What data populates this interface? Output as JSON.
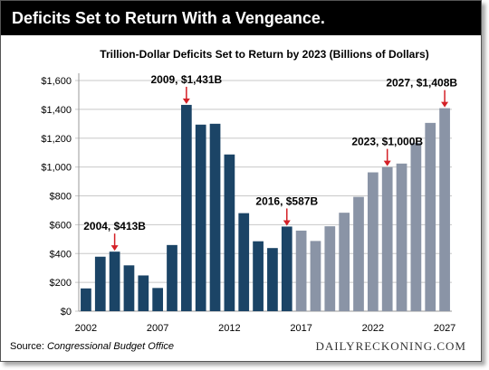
{
  "banner_title": "Deficits Set to Return With a Vengeance.",
  "source_label": "Source:",
  "source_text": "Congressional Budget Office",
  "brand": "DAILYRECKONING.COM",
  "chart_data": {
    "type": "bar",
    "title": "Trillion-Dollar Deficits Set to Return by 2023 (Billions of Dollars)",
    "xlabel": "",
    "ylabel": "",
    "ylim": [
      0,
      1600
    ],
    "y_ticks": [
      0,
      200,
      400,
      600,
      800,
      1000,
      1200,
      1400,
      1600
    ],
    "y_tick_labels": [
      "$0",
      "$200",
      "$400",
      "$600",
      "$800",
      "$1,000",
      "$1,200",
      "$1,400",
      "$1,600"
    ],
    "x_tick_labels": [
      "2002",
      "2007",
      "2012",
      "2017",
      "2022",
      "2027"
    ],
    "grid": true,
    "categories": [
      2002,
      2003,
      2004,
      2005,
      2006,
      2007,
      2008,
      2009,
      2010,
      2011,
      2012,
      2013,
      2014,
      2015,
      2016,
      2017,
      2018,
      2019,
      2020,
      2021,
      2022,
      2023,
      2024,
      2025,
      2026,
      2027
    ],
    "values": [
      158,
      378,
      413,
      318,
      248,
      161,
      459,
      1431,
      1294,
      1300,
      1087,
      680,
      485,
      438,
      587,
      559,
      487,
      589,
      683,
      793,
      963,
      1000,
      1024,
      1168,
      1306,
      1408
    ],
    "projected_from": 2017,
    "colors": {
      "actual": "#1b4466",
      "projected": "#8a94a6",
      "annotation": "#d42027"
    },
    "annotations": [
      {
        "year": 2004,
        "label": "2004, $413B"
      },
      {
        "year": 2009,
        "label": "2009, $1,431B"
      },
      {
        "year": 2016,
        "label": "2016, $587B"
      },
      {
        "year": 2023,
        "label": "2023, $1,000B"
      },
      {
        "year": 2027,
        "label": "2027, $1,408B"
      }
    ]
  }
}
